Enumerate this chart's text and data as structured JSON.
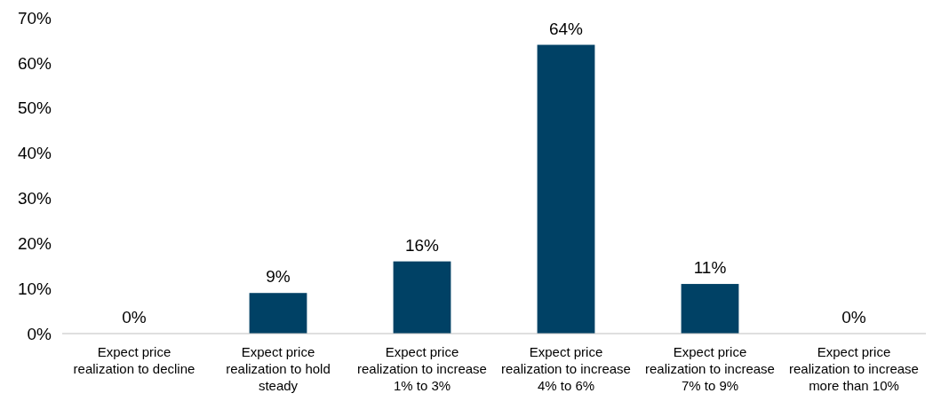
{
  "chart_data": {
    "type": "bar",
    "categories": [
      "Expect price realization to decline",
      "Expect price realization to hold steady",
      "Expect price realization to increase 1% to 3%",
      "Expect price realization to increase 4% to 6%",
      "Expect price realization to increase 7% to 9%",
      "Expect price realization to increase more than 10%"
    ],
    "values": [
      0,
      9,
      16,
      64,
      11,
      0
    ],
    "value_labels": [
      "0%",
      "9%",
      "16%",
      "64%",
      "11%",
      "0%"
    ],
    "color": "#004165",
    "ylim": [
      0,
      70
    ],
    "yticks": [
      {
        "value": 0,
        "label": "0%"
      },
      {
        "value": 10,
        "label": "10%"
      },
      {
        "value": 20,
        "label": "20%"
      },
      {
        "value": 30,
        "label": "30%"
      },
      {
        "value": 40,
        "label": "40%"
      },
      {
        "value": 50,
        "label": "50%"
      },
      {
        "value": 60,
        "label": "60%"
      },
      {
        "value": 70,
        "label": "70%"
      }
    ],
    "grid": false
  }
}
